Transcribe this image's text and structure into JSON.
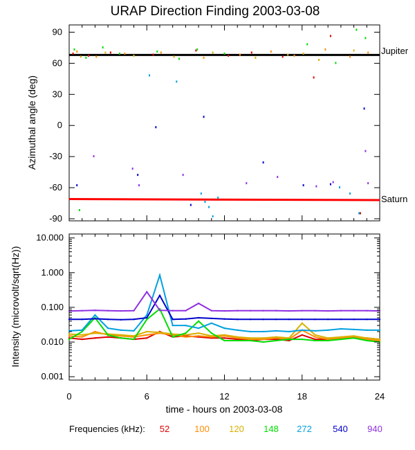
{
  "chart_data": [
    {
      "type": "scatter",
      "title": "URAP Direction Finding  2003-03-08",
      "ylabel": "Azimuthal angle (deg)",
      "xlim": [
        0,
        24
      ],
      "ylim": [
        -92,
        97
      ],
      "yticks": [
        "90",
        "60",
        "30",
        "0",
        "-30",
        "-60",
        "-90"
      ],
      "ytick_values": [
        90,
        60,
        30,
        0,
        -30,
        -60,
        -90
      ],
      "reference_lines": [
        {
          "name": "Jupiter",
          "color": "#000000",
          "x": [
            0,
            24
          ],
          "y": [
            68,
            68
          ]
        },
        {
          "name": "Saturn",
          "color": "#ff0000",
          "x": [
            0,
            24
          ],
          "y": [
            -71,
            -72
          ]
        }
      ],
      "series": [
        {
          "name": "52",
          "color": "#dd0000",
          "x": [
            0.3,
            1.5,
            3.2,
            6.5,
            9.8,
            12.3,
            14.1,
            16.5,
            18.9,
            20.2,
            22.5
          ],
          "y": [
            69,
            67,
            70,
            68,
            72,
            67,
            70,
            66,
            46,
            86,
            -85
          ]
        },
        {
          "name": "100",
          "color": "#ff8c00",
          "x": [
            0.6,
            2.1,
            4.3,
            7.1,
            10.4,
            13.2,
            15.6,
            17.4,
            19.8,
            21.7,
            23.1
          ],
          "y": [
            71,
            66,
            69,
            70,
            65,
            68,
            71,
            67,
            73,
            66,
            70
          ]
        },
        {
          "name": "120",
          "color": "#d8b000",
          "x": [
            0.9,
            2.8,
            5.0,
            8.1,
            11.1,
            14.4,
            16.9,
            18.1,
            19.3,
            22.0
          ],
          "y": [
            66,
            70,
            67,
            66,
            70,
            65,
            68,
            69,
            63,
            72
          ]
        },
        {
          "name": "148",
          "color": "#00dd00",
          "x": [
            0.4,
            1.3,
            2.6,
            3.9,
            6.8,
            8.5,
            9.9,
            12.0,
            18.4,
            20.6,
            22.2,
            22.9,
            0.8
          ],
          "y": [
            73,
            65,
            75,
            69,
            71,
            64,
            73,
            69,
            78,
            60,
            92,
            84,
            -82
          ]
        },
        {
          "name": "272",
          "color": "#00a0e0",
          "x": [
            6.2,
            8.3,
            10.2,
            10.5,
            10.8,
            11.1,
            11.5,
            20.9,
            21.7,
            22.4
          ],
          "y": [
            48,
            42,
            -66,
            -74,
            -79,
            -88,
            -70,
            -60,
            -66,
            -85
          ]
        },
        {
          "name": "540",
          "color": "#0000cc",
          "x": [
            0.6,
            5.3,
            6.7,
            9.4,
            10.4,
            15.0,
            18.1,
            20.2,
            22.8
          ],
          "y": [
            -58,
            -48,
            -2,
            -77,
            8,
            -36,
            -58,
            -57,
            16
          ]
        },
        {
          "name": "940",
          "color": "#9030e0",
          "x": [
            1.9,
            4.9,
            5.4,
            8.8,
            13.7,
            16.1,
            19.1,
            20.4,
            22.9,
            23.1
          ],
          "y": [
            -30,
            -42,
            -58,
            -48,
            -56,
            -50,
            -59,
            -55,
            -25,
            -56
          ]
        }
      ]
    },
    {
      "type": "line",
      "xlabel": "time - hours on 2003-03-08",
      "ylabel": "Intensity (microvolt/sqrt(Hz))",
      "yscale": "log",
      "xlim": [
        0,
        24
      ],
      "ylim": [
        0.0008,
        13
      ],
      "xticks": [
        "0",
        "6",
        "12",
        "18",
        "24"
      ],
      "xtick_values": [
        0,
        6,
        12,
        18,
        24
      ],
      "yticks": [
        "10.000",
        "1.000",
        "0.100",
        "0.010",
        "0.001"
      ],
      "ytick_values": [
        10,
        1,
        0.1,
        0.01,
        0.001
      ],
      "x": [
        0,
        1,
        2,
        3,
        4,
        5,
        6,
        7,
        8,
        9,
        10,
        11,
        12,
        13,
        14,
        15,
        16,
        17,
        18,
        19,
        20,
        21,
        22,
        23,
        24
      ],
      "series": [
        {
          "name": "52",
          "color": "#dd0000",
          "values": [
            0.013,
            0.012,
            0.013,
            0.014,
            0.013,
            0.012,
            0.013,
            0.02,
            0.014,
            0.015,
            0.014,
            0.013,
            0.013,
            0.012,
            0.011,
            0.012,
            0.012,
            0.011,
            0.016,
            0.012,
            0.012,
            0.013,
            0.014,
            0.013,
            0.012
          ]
        },
        {
          "name": "100",
          "color": "#ff8c00",
          "values": [
            0.015,
            0.014,
            0.02,
            0.016,
            0.015,
            0.014,
            0.016,
            0.018,
            0.016,
            0.014,
            0.015,
            0.014,
            0.015,
            0.013,
            0.012,
            0.012,
            0.013,
            0.012,
            0.022,
            0.014,
            0.012,
            0.013,
            0.014,
            0.012,
            0.011
          ]
        },
        {
          "name": "120",
          "color": "#d8b000",
          "values": [
            0.017,
            0.016,
            0.018,
            0.017,
            0.016,
            0.015,
            0.02,
            0.019,
            0.017,
            0.016,
            0.018,
            0.015,
            0.016,
            0.014,
            0.013,
            0.013,
            0.014,
            0.013,
            0.035,
            0.016,
            0.013,
            0.014,
            0.015,
            0.013,
            0.012
          ]
        },
        {
          "name": "148",
          "color": "#00dd00",
          "values": [
            0.012,
            0.02,
            0.05,
            0.016,
            0.013,
            0.012,
            0.045,
            0.09,
            0.014,
            0.018,
            0.04,
            0.018,
            0.011,
            0.011,
            0.011,
            0.01,
            0.011,
            0.012,
            0.012,
            0.011,
            0.011,
            0.012,
            0.013,
            0.011,
            0.01
          ]
        },
        {
          "name": "272",
          "color": "#00a0e0",
          "values": [
            0.021,
            0.022,
            0.06,
            0.025,
            0.022,
            0.021,
            0.06,
            0.85,
            0.03,
            0.03,
            0.025,
            0.035,
            0.025,
            0.022,
            0.02,
            0.02,
            0.021,
            0.02,
            0.022,
            0.021,
            0.022,
            0.024,
            0.023,
            0.022,
            0.022
          ]
        },
        {
          "name": "540",
          "color": "#0000cc",
          "values": [
            0.045,
            0.045,
            0.047,
            0.045,
            0.044,
            0.045,
            0.05,
            0.22,
            0.045,
            0.046,
            0.05,
            0.048,
            0.046,
            0.045,
            0.045,
            0.045,
            0.045,
            0.045,
            0.045,
            0.045,
            0.045,
            0.045,
            0.045,
            0.045,
            0.045
          ]
        },
        {
          "name": "940",
          "color": "#9030e0",
          "values": [
            0.078,
            0.08,
            0.082,
            0.08,
            0.079,
            0.08,
            0.28,
            0.082,
            0.08,
            0.08,
            0.13,
            0.08,
            0.079,
            0.08,
            0.08,
            0.08,
            0.08,
            0.079,
            0.08,
            0.08,
            0.079,
            0.08,
            0.08,
            0.08,
            0.079
          ]
        }
      ]
    }
  ],
  "legend": {
    "label": "Frequencies (kHz):",
    "items": [
      {
        "value": "52",
        "color": "#dd0000"
      },
      {
        "value": "100",
        "color": "#ff8c00"
      },
      {
        "value": "120",
        "color": "#d8b000"
      },
      {
        "value": "148",
        "color": "#00dd00"
      },
      {
        "value": "272",
        "color": "#00a0e0"
      },
      {
        "value": "540",
        "color": "#0000cc"
      },
      {
        "value": "940",
        "color": "#9030e0"
      }
    ]
  }
}
